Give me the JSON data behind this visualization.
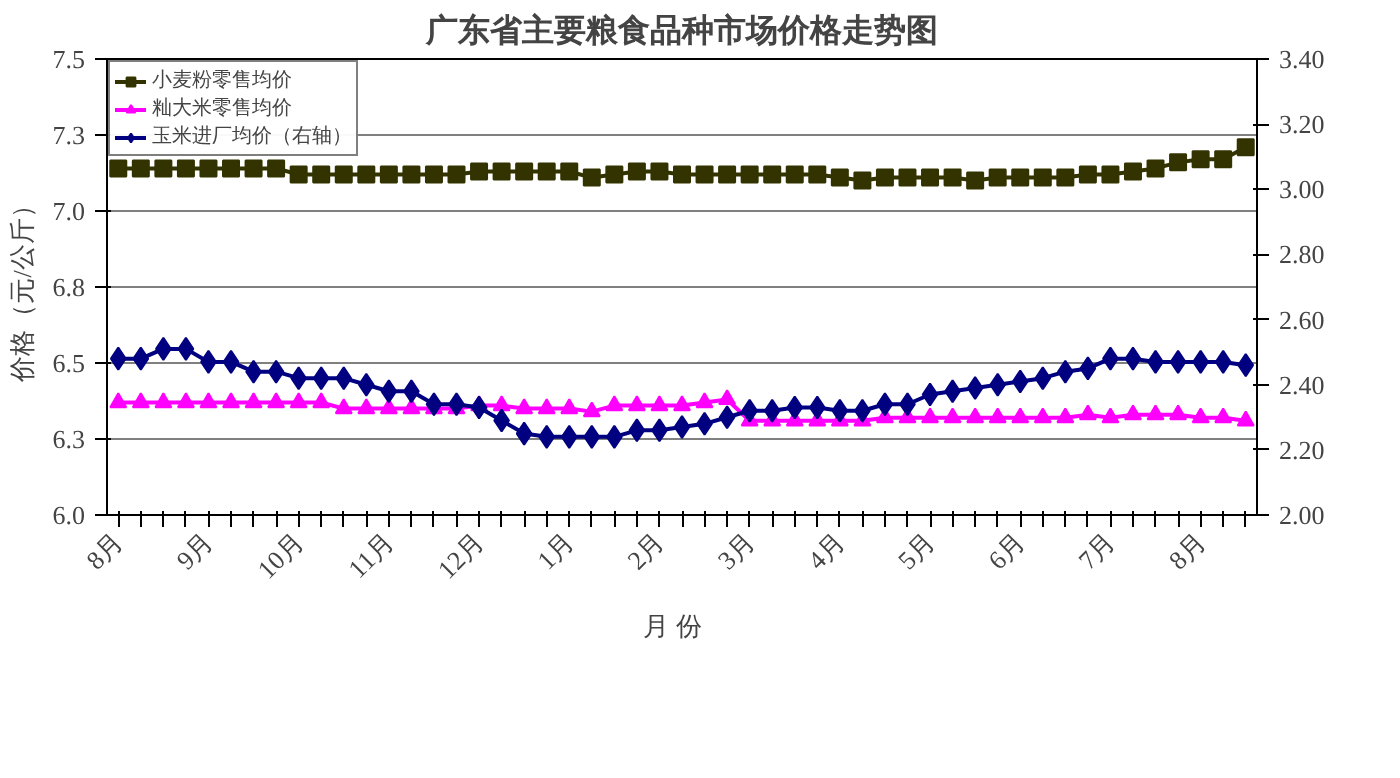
{
  "chart_data": {
    "type": "line",
    "title": "广东省主要粮食品种市场价格走势图",
    "xlabel": "月    份",
    "ylabel": "价格（元/公斤）",
    "categories": [
      "8月",
      null,
      null,
      null,
      "9月",
      null,
      null,
      null,
      "10月",
      null,
      null,
      null,
      "11月",
      null,
      null,
      null,
      "12月",
      null,
      null,
      null,
      "1月",
      null,
      null,
      null,
      "2月",
      null,
      null,
      null,
      "3月",
      null,
      null,
      null,
      "4月",
      null,
      null,
      null,
      "5月",
      null,
      null,
      null,
      "6月",
      null,
      null,
      null,
      "7月",
      null,
      null,
      null,
      "8月",
      null,
      null
    ],
    "series": [
      {
        "name": "小麦粉零售均价",
        "color": "#333300",
        "marker": "square",
        "values": [
          7.14,
          7.14,
          7.14,
          7.14,
          7.14,
          7.14,
          7.14,
          7.14,
          7.12,
          7.12,
          7.12,
          7.12,
          7.12,
          7.12,
          7.12,
          7.12,
          7.13,
          7.13,
          7.13,
          7.13,
          7.13,
          7.11,
          7.12,
          7.13,
          7.13,
          7.12,
          7.12,
          7.12,
          7.12,
          7.12,
          7.12,
          7.12,
          7.11,
          7.1,
          7.11,
          7.11,
          7.11,
          7.11,
          7.1,
          7.11,
          7.11,
          7.11,
          7.11,
          7.12,
          7.12,
          7.13,
          7.14,
          7.16,
          7.17,
          7.17,
          7.21
        ]
      },
      {
        "name": "籼大米零售均价",
        "color": "#ff00ff",
        "marker": "triangle",
        "values": [
          6.37,
          6.37,
          6.37,
          6.37,
          6.37,
          6.37,
          6.37,
          6.37,
          6.37,
          6.37,
          6.35,
          6.35,
          6.35,
          6.35,
          6.35,
          6.35,
          6.36,
          6.36,
          6.35,
          6.35,
          6.35,
          6.34,
          6.36,
          6.36,
          6.36,
          6.36,
          6.37,
          6.38,
          6.31,
          6.31,
          6.31,
          6.31,
          6.31,
          6.31,
          6.32,
          6.32,
          6.32,
          6.32,
          6.32,
          6.32,
          6.32,
          6.32,
          6.32,
          6.33,
          6.32,
          6.33,
          6.33,
          6.33,
          6.32,
          6.32,
          6.31
        ]
      },
      {
        "name": "玉米进厂均价（右轴）",
        "color": "#000080",
        "marker": "diamond",
        "axis": "y2",
        "values": [
          2.48,
          2.48,
          2.51,
          2.51,
          2.47,
          2.47,
          2.44,
          2.44,
          2.42,
          2.42,
          2.42,
          2.4,
          2.38,
          2.38,
          2.34,
          2.34,
          2.33,
          2.29,
          2.25,
          2.24,
          2.24,
          2.24,
          2.24,
          2.26,
          2.26,
          2.27,
          2.28,
          2.3,
          2.32,
          2.32,
          2.33,
          2.33,
          2.32,
          2.32,
          2.34,
          2.34,
          2.37,
          2.38,
          2.39,
          2.4,
          2.41,
          2.42,
          2.44,
          2.45,
          2.48,
          2.48,
          2.47,
          2.47,
          2.47,
          2.47,
          2.46
        ]
      }
    ],
    "ylim": [
      6.0,
      7.5
    ],
    "yticks": [
      {
        "value": 6.0,
        "label": "6.0"
      },
      {
        "value": 6.25,
        "label": "6.3"
      },
      {
        "value": 6.5,
        "label": "6.5"
      },
      {
        "value": 6.75,
        "label": "6.8"
      },
      {
        "value": 7.0,
        "label": "7.0"
      },
      {
        "value": 7.25,
        "label": "7.3"
      },
      {
        "value": 7.5,
        "label": "7.5"
      }
    ],
    "y2lim": [
      2.0,
      3.4
    ],
    "y2ticks": [
      {
        "value": 2.0,
        "label": "2.00"
      },
      {
        "value": 2.2,
        "label": "2.20"
      },
      {
        "value": 2.4,
        "label": "2.40"
      },
      {
        "value": 2.6,
        "label": "2.60"
      },
      {
        "value": 2.8,
        "label": "2.80"
      },
      {
        "value": 3.0,
        "label": "3.00"
      },
      {
        "value": 3.2,
        "label": "3.20"
      },
      {
        "value": 3.4,
        "label": "3.40"
      }
    ],
    "grid": "y",
    "legend": "top left",
    "line_style": "solid"
  }
}
